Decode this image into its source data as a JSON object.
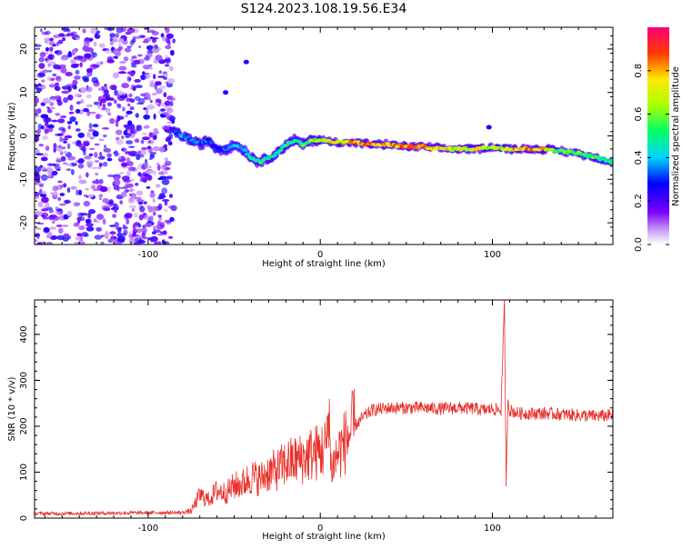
{
  "title": "S124.2023.108.19.56.E34",
  "colors": {
    "trace": "#e8302a",
    "axis": "#000000",
    "scatter": "#8a2be2"
  },
  "chart_data": [
    {
      "type": "heatmap",
      "name": "spectrogram",
      "xlabel": "Height of straight line (km)",
      "ylabel": "Frequency (Hz)",
      "xlim": [
        -166,
        170
      ],
      "ylim": [
        -25,
        25
      ],
      "xticks": [
        -100,
        0,
        100
      ],
      "yticks": [
        -20,
        -10,
        0,
        10,
        20
      ],
      "noise_region": {
        "x": [
          -166,
          -85
        ],
        "y": [
          -25,
          25
        ]
      },
      "ridge": {
        "x": [
          -85,
          -80,
          -75,
          -70,
          -65,
          -60,
          -55,
          -50,
          -45,
          -40,
          -35,
          -30,
          -25,
          -20,
          -15,
          -10,
          -5,
          0,
          10,
          20,
          30,
          40,
          50,
          60,
          70,
          80,
          90,
          100,
          110,
          120,
          130,
          140,
          150,
          160,
          170
        ],
        "y": [
          1,
          0,
          -1,
          -2,
          -1,
          -3,
          -3,
          -2,
          -3,
          -5,
          -6,
          -5,
          -4,
          -2,
          -1,
          -2,
          -1,
          -1,
          -1.5,
          -1.5,
          -2,
          -2,
          -2.5,
          -2.5,
          -3,
          -3,
          -3,
          -2.5,
          -3,
          -3,
          -3,
          -3.5,
          -4,
          -5,
          -6
        ],
        "amplitude": [
          0.3,
          0.4,
          0.35,
          0.4,
          0.35,
          0.3,
          0.35,
          0.4,
          0.4,
          0.5,
          0.55,
          0.5,
          0.5,
          0.55,
          0.6,
          0.6,
          0.65,
          0.7,
          0.8,
          0.9,
          0.85,
          0.85,
          0.9,
          0.9,
          0.8,
          0.75,
          0.8,
          0.7,
          0.85,
          0.9,
          0.85,
          0.6,
          0.65,
          0.6,
          0.5
        ]
      },
      "isolated_spots": [
        {
          "x": -43,
          "y": 17
        },
        {
          "x": -55,
          "y": 10
        },
        {
          "x": 98,
          "y": 2
        }
      ],
      "colorbar": {
        "label": "Normalized spectral amplitude",
        "ticks": [
          "0.0",
          "0.2",
          "0.4",
          "0.6",
          "0.8"
        ],
        "range": [
          0,
          1
        ]
      }
    },
    {
      "type": "line",
      "name": "snr",
      "xlabel": "Height of straight line (km)",
      "ylabel": "SNR (10 * v/v)",
      "xlim": [
        -166,
        170
      ],
      "ylim": [
        0,
        475
      ],
      "xticks": [
        -100,
        0,
        100
      ],
      "yticks": [
        0,
        100,
        200,
        300,
        400
      ],
      "series": [
        {
          "x": [
            -166,
            -150,
            -120,
            -90,
            -80,
            -75,
            -70,
            -65,
            -60,
            -55,
            -50,
            -45,
            -40,
            -35,
            -30,
            -25,
            -20,
            -15,
            -10,
            -5,
            0,
            2,
            4,
            5,
            6,
            8,
            10,
            15,
            20,
            25,
            30,
            40,
            50,
            60,
            70,
            80,
            90,
            95,
            100,
            105,
            107,
            108,
            109,
            110,
            115,
            120,
            130,
            140,
            150,
            160,
            170
          ],
          "y": [
            10,
            10,
            11,
            12,
            12,
            15,
            50,
            40,
            60,
            55,
            70,
            75,
            90,
            85,
            100,
            105,
            120,
            125,
            130,
            140,
            145,
            150,
            160,
            275,
            110,
            120,
            140,
            170,
            200,
            220,
            235,
            240,
            240,
            240,
            238,
            240,
            238,
            235,
            238,
            235,
            470,
            60,
            260,
            235,
            228,
            228,
            228,
            226,
            224,
            222,
            224
          ]
        }
      ]
    }
  ]
}
